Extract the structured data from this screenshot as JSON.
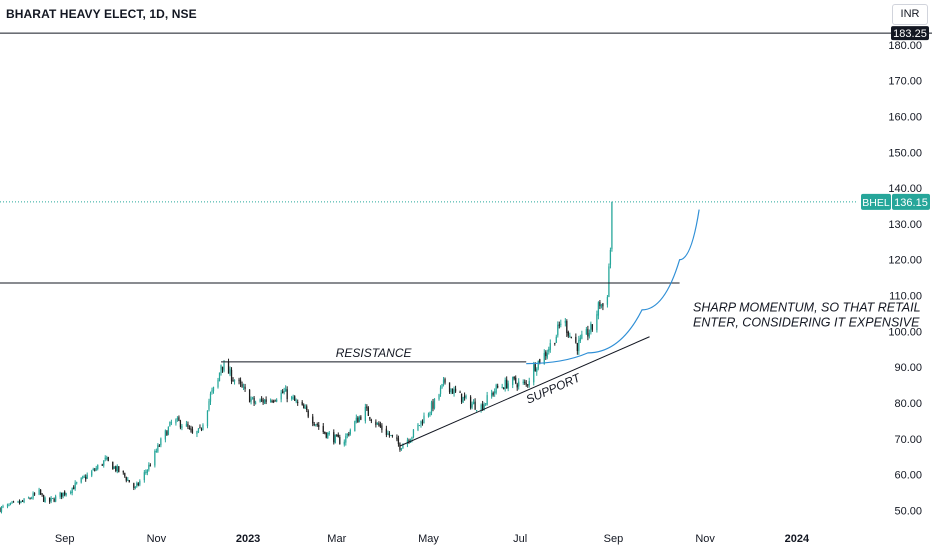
{
  "header": {
    "symbol_title": "BHARAT HEAVY ELECT, 1D, NSE"
  },
  "currency_button": "INR",
  "price_tags": {
    "high_line_value": "183.25",
    "ticker": "BHEL",
    "last_price": "136.15"
  },
  "annotations": {
    "resistance": "RESISTANCE",
    "support": "SUPPORT",
    "note_line1": "SHARP MOMENTUM, SO THAT RETAIL",
    "note_line2": "ENTER, CONSIDERING IT EXPENSIVE"
  },
  "colors": {
    "up": "#26a69a",
    "down": "#1e1e1e",
    "curve": "#2f8fd6",
    "last_price_line": "#26a69a"
  },
  "chart_data": {
    "type": "candlestick",
    "title": "BHARAT HEAVY ELECT, 1D, NSE",
    "x_tick_labels": [
      "Sep",
      "Nov",
      "2023",
      "Mar",
      "May",
      "Jul",
      "Sep",
      "Nov",
      "2024"
    ],
    "y_tick_labels": [
      "50.00",
      "60.00",
      "70.00",
      "80.00",
      "90.00",
      "100.00",
      "110.00",
      "120.00",
      "130.00",
      "140.00",
      "150.00",
      "160.00",
      "170.00",
      "180.00"
    ],
    "ylim": [
      46.5,
      184
    ],
    "x_range": [
      "2022-07-20",
      "2024-02-10"
    ],
    "close_path": [
      [
        "2022-07-20",
        50.5
      ],
      [
        "2022-08-05",
        52.5
      ],
      [
        "2022-08-15",
        55
      ],
      [
        "2022-08-20",
        52
      ],
      [
        "2022-09-05",
        56
      ],
      [
        "2022-09-20",
        61
      ],
      [
        "2022-09-28",
        64
      ],
      [
        "2022-10-10",
        60
      ],
      [
        "2022-10-18",
        56
      ],
      [
        "2022-10-28",
        63
      ],
      [
        "2022-11-05",
        70
      ],
      [
        "2022-11-12",
        75
      ],
      [
        "2022-11-20",
        74
      ],
      [
        "2022-11-25",
        71
      ],
      [
        "2022-11-30",
        72
      ],
      [
        "2022-12-07",
        82
      ],
      [
        "2022-12-12",
        86
      ],
      [
        "2022-12-14",
        91
      ],
      [
        "2022-12-20",
        88
      ],
      [
        "2022-12-28",
        84
      ],
      [
        "2023-01-05",
        80
      ],
      [
        "2023-01-15",
        81
      ],
      [
        "2023-01-25",
        83
      ],
      [
        "2023-02-02",
        80
      ],
      [
        "2023-02-10",
        77
      ],
      [
        "2023-02-20",
        72
      ],
      [
        "2023-02-28",
        70
      ],
      [
        "2023-03-05",
        69
      ],
      [
        "2023-03-12",
        74
      ],
      [
        "2023-03-20",
        78
      ],
      [
        "2023-03-28",
        74
      ],
      [
        "2023-04-05",
        71
      ],
      [
        "2023-04-12",
        68
      ],
      [
        "2023-04-20",
        71
      ],
      [
        "2023-04-28",
        76
      ],
      [
        "2023-05-05",
        80
      ],
      [
        "2023-05-12",
        86
      ],
      [
        "2023-05-18",
        83
      ],
      [
        "2023-05-28",
        80
      ],
      [
        "2023-06-05",
        79
      ],
      [
        "2023-06-15",
        84
      ],
      [
        "2023-06-25",
        86
      ],
      [
        "2023-07-05",
        85
      ],
      [
        "2023-07-10",
        90
      ],
      [
        "2023-07-18",
        94
      ],
      [
        "2023-07-25",
        99
      ],
      [
        "2023-07-29",
        104
      ],
      [
        "2023-08-03",
        99
      ],
      [
        "2023-08-08",
        96
      ],
      [
        "2023-08-14",
        99
      ],
      [
        "2023-08-18",
        101
      ],
      [
        "2023-08-20",
        104
      ],
      [
        "2023-08-23",
        108
      ],
      [
        "2023-08-25",
        107
      ],
      [
        "2023-08-28",
        111
      ],
      [
        "2023-08-29",
        118
      ],
      [
        "2023-08-30",
        123
      ],
      [
        "2023-08-31",
        136.15
      ]
    ],
    "horizontal_lines": [
      {
        "value": 183.25,
        "label": "183.25"
      },
      {
        "value": 113.5,
        "from": "2022-07-20",
        "to": "2023-10-15"
      },
      {
        "value": 91.5,
        "from": "2022-12-14",
        "to": "2023-07-05",
        "label": "RESISTANCE"
      },
      {
        "value": 136.15,
        "style": "dotted",
        "label": "BHEL 136.15"
      }
    ],
    "trend_lines": [
      {
        "from": [
          "2023-04-12",
          68
        ],
        "to": [
          "2023-09-25",
          98.5
        ],
        "label": "SUPPORT"
      }
    ],
    "curves": [
      {
        "points": [
          [
            "2023-07-05",
            91
          ],
          [
            "2023-08-15",
            94
          ],
          [
            "2023-09-20",
            106
          ],
          [
            "2023-10-15",
            120
          ],
          [
            "2023-10-28",
            134
          ]
        ]
      }
    ],
    "last_price": 136.15,
    "grid": false
  }
}
